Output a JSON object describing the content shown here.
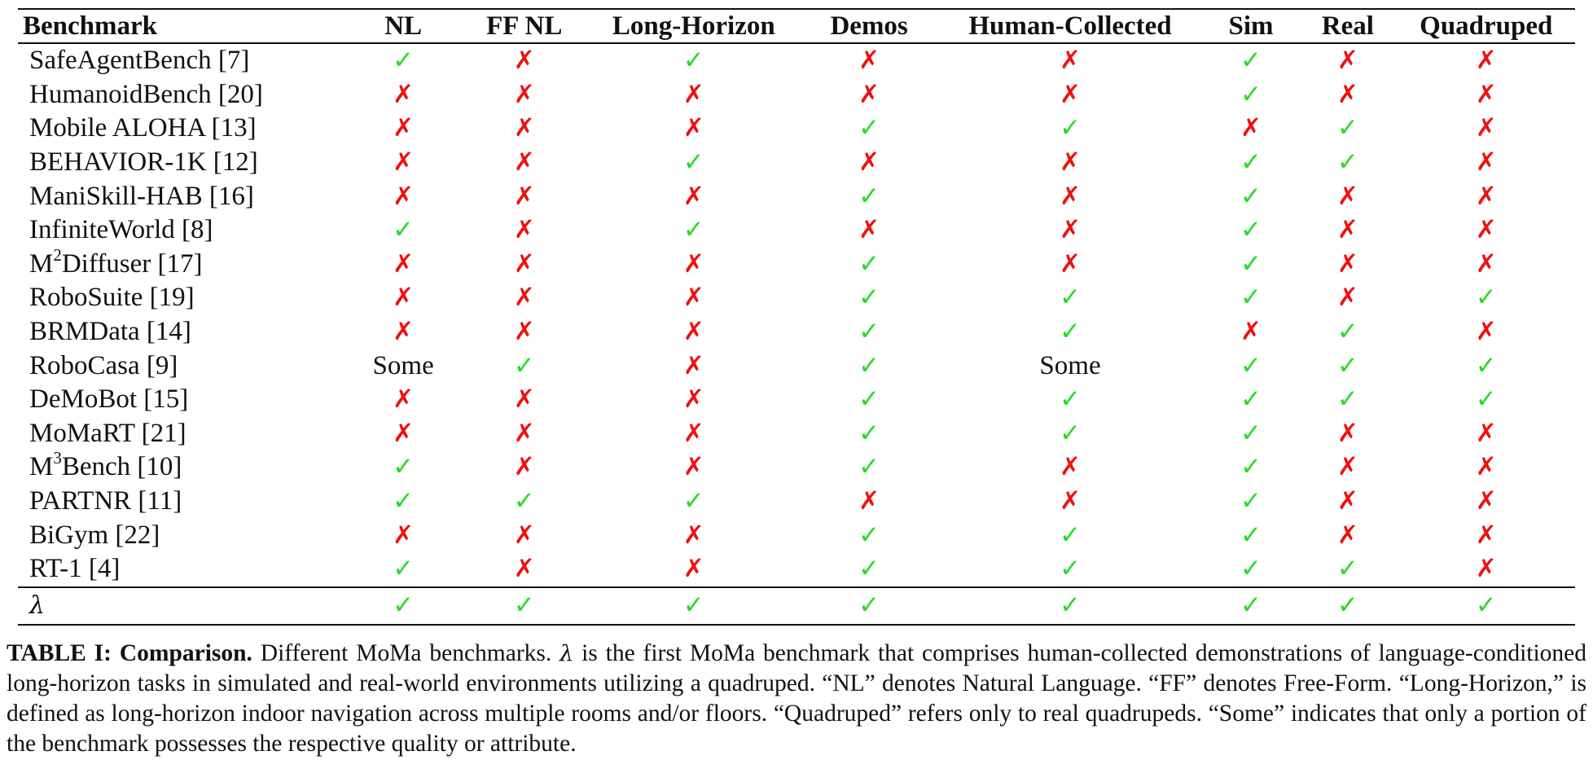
{
  "table": {
    "headers": [
      "Benchmark",
      "NL",
      "FF NL",
      "Long-Horizon",
      "Demos",
      "Human-Collected",
      "Sim",
      "Real",
      "Quadruped"
    ],
    "rows": [
      {
        "name": "SafeAgentBench [7]",
        "cells": [
          "check",
          "cross",
          "check",
          "cross",
          "cross",
          "check",
          "cross",
          "cross"
        ]
      },
      {
        "name": "HumanoidBench [20]",
        "cells": [
          "cross",
          "cross",
          "cross",
          "cross",
          "cross",
          "check",
          "cross",
          "cross"
        ]
      },
      {
        "name": "Mobile ALOHA [13]",
        "cells": [
          "cross",
          "cross",
          "cross",
          "check",
          "check",
          "cross",
          "check",
          "cross"
        ]
      },
      {
        "name": "BEHAVIOR-1K [12]",
        "cells": [
          "cross",
          "cross",
          "check",
          "cross",
          "cross",
          "check",
          "check",
          "cross"
        ]
      },
      {
        "name": "ManiSkill-HAB [16]",
        "cells": [
          "cross",
          "cross",
          "cross",
          "check",
          "cross",
          "check",
          "cross",
          "cross"
        ]
      },
      {
        "name": "InfiniteWorld [8]",
        "cells": [
          "check",
          "cross",
          "check",
          "cross",
          "cross",
          "check",
          "cross",
          "cross"
        ]
      },
      {
        "name": "M",
        "sup": "2",
        "suffix": "Diffuser [17]",
        "cells": [
          "cross",
          "cross",
          "cross",
          "check",
          "cross",
          "check",
          "cross",
          "cross"
        ]
      },
      {
        "name": "RoboSuite [19]",
        "cells": [
          "cross",
          "cross",
          "cross",
          "check",
          "check",
          "check",
          "cross",
          "check"
        ]
      },
      {
        "name": "BRMData [14]",
        "cells": [
          "cross",
          "cross",
          "cross",
          "check",
          "check",
          "cross",
          "check",
          "cross"
        ]
      },
      {
        "name": "RoboCasa [9]",
        "cells": [
          "Some",
          "check",
          "cross",
          "check",
          "Some",
          "check",
          "check",
          "check"
        ]
      },
      {
        "name": "DeMoBot [15]",
        "cells": [
          "cross",
          "cross",
          "cross",
          "check",
          "check",
          "check",
          "check",
          "check"
        ]
      },
      {
        "name": "MoMaRT [21]",
        "cells": [
          "cross",
          "cross",
          "cross",
          "check",
          "check",
          "check",
          "cross",
          "cross"
        ]
      },
      {
        "name": "M",
        "sup": "3",
        "suffix": "Bench [10]",
        "cells": [
          "check",
          "cross",
          "cross",
          "check",
          "cross",
          "check",
          "cross",
          "cross"
        ]
      },
      {
        "name": "PARTNR [11]",
        "cells": [
          "check",
          "check",
          "check",
          "cross",
          "cross",
          "check",
          "cross",
          "cross"
        ]
      },
      {
        "name": "BiGym [22]",
        "cells": [
          "cross",
          "cross",
          "cross",
          "check",
          "check",
          "check",
          "cross",
          "cross"
        ]
      },
      {
        "name": "RT-1 [4]",
        "cells": [
          "check",
          "cross",
          "cross",
          "check",
          "check",
          "check",
          "check",
          "cross"
        ]
      }
    ],
    "lambda_row": {
      "name": "λ",
      "cells": [
        "check",
        "check",
        "check",
        "check",
        "check",
        "check",
        "check",
        "check"
      ]
    }
  },
  "symbols": {
    "check": "✓",
    "cross": "✗"
  },
  "colors": {
    "check": "#22dd22",
    "cross": "#ee1111"
  },
  "caption": {
    "label": "TABLE I:",
    "title": "Comparison.",
    "text_1": " Different MoMa benchmarks. ",
    "lambda": "λ",
    "text_2": " is the first MoMa benchmark that comprises human-collected demonstrations of language-conditioned long-horizon tasks in simulated and real-world environments utilizing a quadruped. “NL” denotes Natural Language. “FF” denotes Free-Form. “Long-Horizon,” is defined as long-horizon indoor navigation across multiple rooms and/or floors. “Quadruped” refers only to real quadrupeds. “Some” indicates that only a portion of the benchmark possesses the respective quality or attribute."
  }
}
